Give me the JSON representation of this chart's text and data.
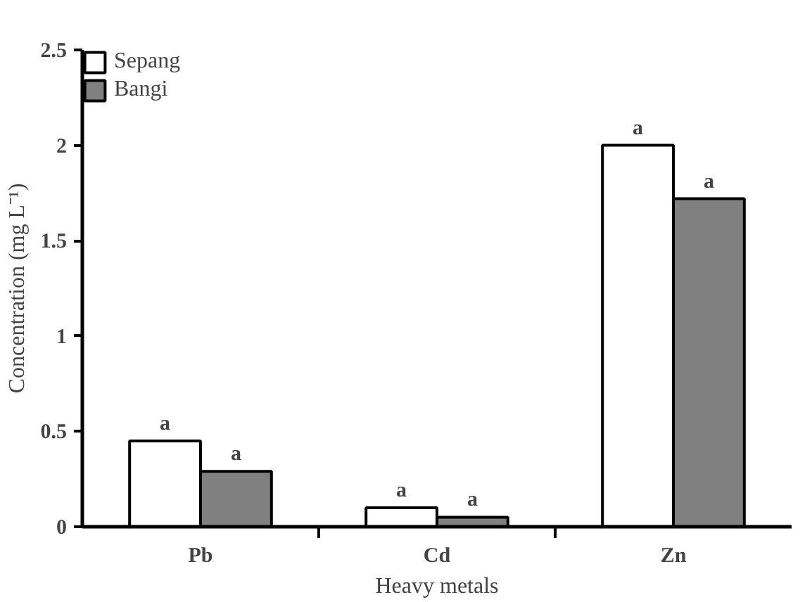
{
  "chart_data": {
    "type": "bar",
    "xlabel": "Heavy metals",
    "ylabel": "Concentration (mg L⁻¹)",
    "categories": [
      "Pb",
      "Cd",
      "Zn"
    ],
    "series": [
      {
        "name": "Sepang",
        "color": "#ffffff",
        "values": [
          0.45,
          0.1,
          2.0
        ],
        "value_labels": [
          "a",
          "a",
          "a"
        ]
      },
      {
        "name": "Bangi",
        "color": "#808080",
        "values": [
          0.29,
          0.05,
          1.72
        ],
        "value_labels": [
          "a",
          "a",
          "a"
        ]
      }
    ],
    "ylim": [
      0,
      2.5
    ],
    "yticks": [
      0,
      0.5,
      1,
      1.5,
      2,
      2.5
    ],
    "grid": false,
    "legend": "top left"
  }
}
